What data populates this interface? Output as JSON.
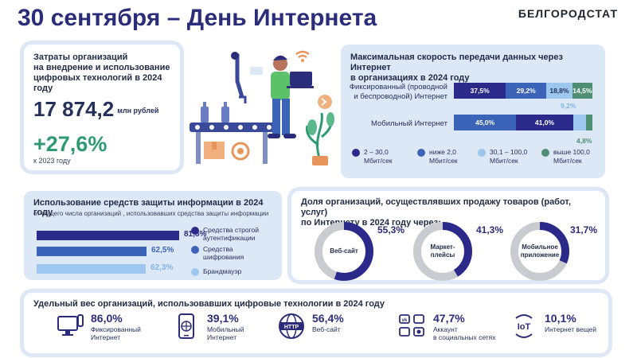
{
  "title": "30 сентября – День Интернета",
  "brand": "БЕЛГОРОДСТАТ",
  "costs": {
    "heading_1": "Затраты организаций",
    "heading_2": "на внедрение и использование",
    "heading_3": "цифровых технологий в 2024 году",
    "value": "17 874,2",
    "unit": "млн рублей",
    "growth": "+27,6%",
    "growth_note": "к 2023 году"
  },
  "speed": {
    "heading_1": "Максимальная скорость передачи данных через Интернет",
    "heading_2": "в организациях в 2024 году",
    "rows": [
      {
        "label_1": "Фиксированный (проводной",
        "label_2": "и беспроводной) Интернет",
        "segments": [
          {
            "value": 37.5,
            "label": "37,5%",
            "color": "#2b2a8a"
          },
          {
            "value": 29.2,
            "label": "29,2%",
            "color": "#3b63b8"
          },
          {
            "value": 18.8,
            "label": "18,8%",
            "color": "#9dc7ee"
          },
          {
            "value": 14.5,
            "label": "14,5%",
            "color": "#4e8f73"
          }
        ]
      },
      {
        "label_1": "Мобильный Интернет",
        "label_2": "",
        "segments": [
          {
            "value": 45.0,
            "label": "45,0%",
            "color": "#3b63b8"
          },
          {
            "value": 41.0,
            "label": "41,0%",
            "color": "#2b2a8a"
          },
          {
            "value": 9.2,
            "label": "",
            "color": "#9dc7ee"
          },
          {
            "value": 4.8,
            "label": "",
            "color": "#4e8f73"
          }
        ]
      }
    ],
    "callout_light": "9,2%",
    "callout_green": "4,8%",
    "legend": [
      {
        "line_1": "2 – 30,0",
        "line_2": "Мбит/сек",
        "color": "#2b2a8a"
      },
      {
        "line_1": "ниже 2,0",
        "line_2": "Мбит/сек",
        "color": "#3b63b8"
      },
      {
        "line_1": "30,1 – 100,0",
        "line_2": "Мбит/сек",
        "color": "#9dc7ee"
      },
      {
        "line_1": "выше 100,0",
        "line_2": "Мбит/сек",
        "color": "#4e8f73"
      }
    ]
  },
  "security": {
    "heading": "Использование средств защиты информации в 2024 году",
    "subheading": "от общего числа организаций , использовавших средства защиты информации",
    "bars": [
      {
        "value": 81.5,
        "label": "81,5%",
        "color": "#2b2a8a"
      },
      {
        "value": 62.5,
        "label": "62,5%",
        "color": "#3b63b8"
      },
      {
        "value": 62.3,
        "label": "62,3%",
        "color": "#9dc7ee"
      }
    ],
    "legend": [
      {
        "line_1": "Средства строгой",
        "line_2": "аутентификации",
        "color": "#2b2a8a"
      },
      {
        "line_1": "Средства",
        "line_2": "шифрования",
        "color": "#3b63b8"
      },
      {
        "line_1": "Брандмауэр",
        "line_2": "",
        "color": "#9dc7ee"
      }
    ]
  },
  "sales": {
    "heading_1": "Доля организаций, осуществлявших продажу товаров (работ, услуг)",
    "heading_2": "по Интернету в 2024 году через:",
    "donuts": [
      {
        "value": 55.3,
        "label": "55,3%",
        "name_1": "Веб-сайт",
        "name_2": ""
      },
      {
        "value": 41.3,
        "label": "41,3%",
        "name_1": "Маркет-",
        "name_2": "плейсы"
      },
      {
        "value": 31.7,
        "label": "31,7%",
        "name_1": "Мобильное",
        "name_2": "приложение"
      }
    ],
    "color_fill": "#2b2a8a",
    "color_track": "#c9cbd0"
  },
  "digital": {
    "heading": "Удельный вес организаций, использовавших цифровые технологии в 2024 году",
    "items": [
      {
        "icon": "computer-icon",
        "value": "86,0%",
        "line_1": "Фиксированный",
        "line_2": "Интернет"
      },
      {
        "icon": "phone-icon",
        "value": "39,1%",
        "line_1": "Мобильный",
        "line_2": "Интернет"
      },
      {
        "icon": "http-globe-icon",
        "value": "56,4%",
        "line_1": "Веб-сайт",
        "line_2": ""
      },
      {
        "icon": "social-network-icon",
        "value": "47,7%",
        "line_1": "Аккаунт",
        "line_2": "в социальных сетях"
      },
      {
        "icon": "iot-icon",
        "value": "10,1%",
        "line_1": "Интернет вещей",
        "line_2": ""
      }
    ]
  }
}
